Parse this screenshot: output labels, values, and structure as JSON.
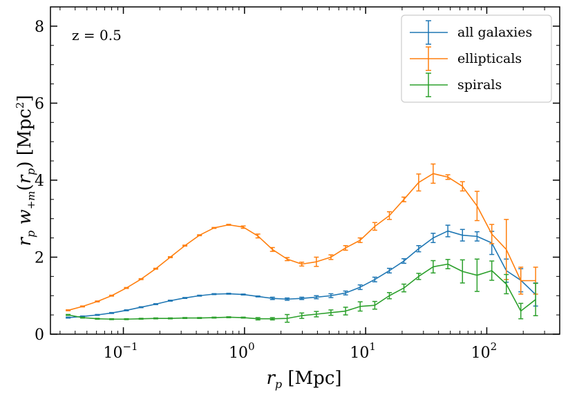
{
  "chart_data": {
    "type": "line",
    "title": "",
    "annotation": "z = 0.5",
    "xlabel": "r_p [Mpc]",
    "ylabel": "r_p w_{+m}(r_p) [Mpc²]",
    "xscale": "log",
    "xlim": [
      0.025,
      400
    ],
    "ylim": [
      0,
      8.5
    ],
    "x_ticks": [
      0.1,
      1,
      10,
      100
    ],
    "x_tick_labels": [
      {
        "base": "10",
        "exp": "−1"
      },
      {
        "base": "10",
        "exp": "0"
      },
      {
        "base": "10",
        "exp": "1"
      },
      {
        "base": "10",
        "exp": "2"
      }
    ],
    "y_ticks": [
      0,
      2,
      4,
      6,
      8
    ],
    "y_tick_labels": [
      "0",
      "2",
      "4",
      "6",
      "8"
    ],
    "legend_position": "top-right",
    "x": [
      0.035,
      0.046,
      0.061,
      0.08,
      0.106,
      0.14,
      0.185,
      0.244,
      0.322,
      0.425,
      0.561,
      0.74,
      0.977,
      1.29,
      1.7,
      2.25,
      2.97,
      3.92,
      5.17,
      6.83,
      9.01,
      11.9,
      15.7,
      20.7,
      27.4,
      36.1,
      47.7,
      63.0,
      83.1,
      110,
      145,
      191,
      253
    ],
    "series": [
      {
        "name": "all galaxies",
        "color": "#1f77b4",
        "values": [
          0.43,
          0.46,
          0.5,
          0.55,
          0.62,
          0.7,
          0.78,
          0.87,
          0.94,
          1.0,
          1.04,
          1.05,
          1.03,
          0.98,
          0.93,
          0.91,
          0.93,
          0.96,
          1.0,
          1.07,
          1.22,
          1.42,
          1.65,
          1.9,
          2.22,
          2.5,
          2.68,
          2.57,
          2.54,
          2.37,
          1.65,
          1.4,
          1.03
        ],
        "errors": [
          0.0,
          0.0,
          0.0,
          0.0,
          0.0,
          0.0,
          0.0,
          0.0,
          0.0,
          0.0,
          0.0,
          0.0,
          0.0,
          0.0,
          0.03,
          0.03,
          0.03,
          0.04,
          0.05,
          0.05,
          0.06,
          0.06,
          0.06,
          0.06,
          0.08,
          0.12,
          0.15,
          0.15,
          0.12,
          0.3,
          0.3,
          0.3,
          0.3
        ]
      },
      {
        "name": "ellipticals",
        "color": "#ff7f0e",
        "values": [
          0.62,
          0.72,
          0.85,
          1.0,
          1.2,
          1.43,
          1.7,
          2.0,
          2.3,
          2.57,
          2.76,
          2.84,
          2.78,
          2.55,
          2.2,
          1.95,
          1.82,
          1.88,
          2.0,
          2.24,
          2.44,
          2.8,
          3.08,
          3.5,
          3.94,
          4.17,
          4.08,
          3.84,
          3.33,
          2.6,
          2.2,
          1.39,
          1.39
        ],
        "errors": [
          0.0,
          0.0,
          0.0,
          0.0,
          0.0,
          0.0,
          0.0,
          0.0,
          0.0,
          0.0,
          0.0,
          0.0,
          0.03,
          0.05,
          0.05,
          0.04,
          0.05,
          0.12,
          0.06,
          0.06,
          0.06,
          0.1,
          0.1,
          0.06,
          0.22,
          0.25,
          0.06,
          0.12,
          0.38,
          0.25,
          0.78,
          0.35,
          0.35
        ]
      },
      {
        "name": "spirals",
        "color": "#2ca02c",
        "values": [
          0.5,
          0.43,
          0.4,
          0.39,
          0.39,
          0.4,
          0.41,
          0.41,
          0.42,
          0.42,
          0.43,
          0.44,
          0.43,
          0.4,
          0.4,
          0.41,
          0.48,
          0.52,
          0.56,
          0.6,
          0.72,
          0.75,
          1.0,
          1.2,
          1.5,
          1.75,
          1.82,
          1.63,
          1.53,
          1.65,
          1.3,
          0.6,
          0.9
        ],
        "errors": [
          0.0,
          0.0,
          0.0,
          0.0,
          0.0,
          0.0,
          0.0,
          0.0,
          0.0,
          0.0,
          0.0,
          0.0,
          0.0,
          0.03,
          0.03,
          0.1,
          0.07,
          0.07,
          0.07,
          0.1,
          0.12,
          0.1,
          0.08,
          0.1,
          0.08,
          0.16,
          0.12,
          0.3,
          0.42,
          0.25,
          0.25,
          0.2,
          0.42
        ]
      }
    ]
  }
}
